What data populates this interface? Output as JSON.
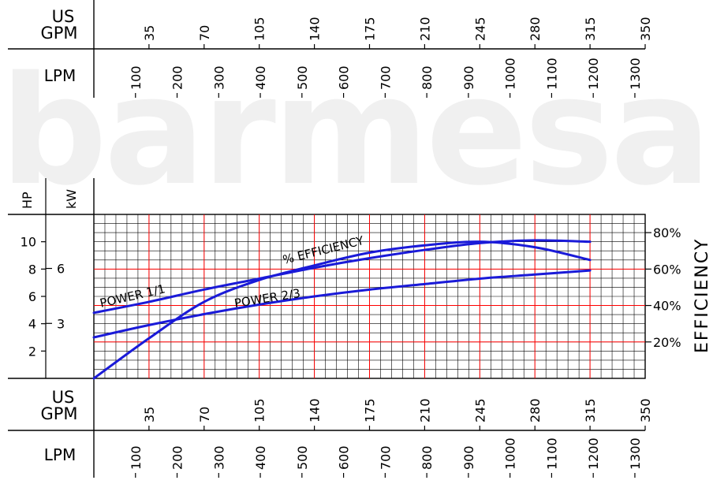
{
  "watermark": "barmesa",
  "units": {
    "us_gpm": "US\nGPM",
    "lpm": "LPM",
    "hp": "HP",
    "kw": "kW",
    "efficiency": "EFFICIENCY"
  },
  "axes": {
    "usgpm_ticks": [
      "35",
      "70",
      "105",
      "140",
      "175",
      "210",
      "245",
      "280",
      "315",
      "350"
    ],
    "lpm_ticks": [
      "100",
      "200",
      "300",
      "400",
      "500",
      "600",
      "700",
      "800",
      "900",
      "1000",
      "1100",
      "1200",
      "1300"
    ],
    "hp_ticks": [
      "2",
      "4",
      "6",
      "8",
      "10"
    ],
    "kw_ticks": [
      "3",
      "6"
    ],
    "eff_ticks": [
      "20%",
      "40%",
      "60%",
      "80%"
    ]
  },
  "colors": {
    "curve": "#1a1ad8",
    "major_grid": "#ff0000",
    "minor_grid": "#000000",
    "watermark": "#f0f0f0"
  },
  "chart_data": {
    "type": "line",
    "x_unit": "US GPM",
    "xlim": [
      0,
      350
    ],
    "ylim_hp": [
      0,
      12
    ],
    "ylim_efficiency_pct": [
      0,
      90
    ],
    "grid": true,
    "series": [
      {
        "name": "POWER 1/1",
        "axis": "HP",
        "x": [
          0,
          35,
          70,
          105,
          140,
          175,
          210,
          245,
          280,
          315
        ],
        "y": [
          4.8,
          5.6,
          6.5,
          7.3,
          8.1,
          8.8,
          9.4,
          9.9,
          10.1,
          10.0
        ]
      },
      {
        "name": "POWER 2/3",
        "axis": "HP",
        "x": [
          0,
          35,
          70,
          105,
          140,
          175,
          210,
          245,
          280,
          315
        ],
        "y": [
          3.0,
          3.9,
          4.7,
          5.4,
          6.0,
          6.5,
          6.9,
          7.3,
          7.6,
          7.9
        ]
      },
      {
        "name": "% EFFICIENCY",
        "axis": "EFFICIENCY",
        "x": [
          0,
          35,
          70,
          105,
          140,
          175,
          210,
          245,
          280,
          315
        ],
        "y": [
          0,
          22,
          42,
          54,
          62,
          69,
          73,
          75,
          72,
          65
        ]
      }
    ],
    "labels": {
      "power_full": "POWER    1/1",
      "power_two_thirds": "POWER  2/3",
      "efficiency": "% EFFICIENCY"
    }
  }
}
